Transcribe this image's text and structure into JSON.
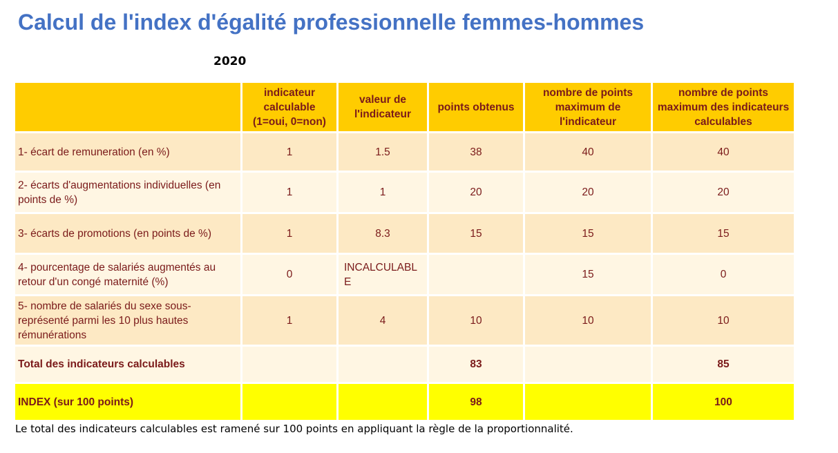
{
  "title": "Calcul de l'index d'égalité professionnelle femmes-hommes",
  "year": "2020",
  "table": {
    "headers": [
      "",
      "indicateur calculable (1=oui, 0=non)",
      "valeur de l'indicateur",
      "points obtenus",
      "nombre de points maximum de l'indicateur",
      "nombre de points maximum des indicateurs calculables"
    ],
    "rows": [
      {
        "label": "1- écart de remuneration (en %)",
        "calc": "1",
        "valeur": "1.5",
        "points": "38",
        "max": "40",
        "max_calc": "40"
      },
      {
        "label": "2- écarts d'augmentations individuelles (en points de %)",
        "calc": "1",
        "valeur": "1",
        "points": "20",
        "max": "20",
        "max_calc": "20"
      },
      {
        "label": "3- écarts de promotions (en points de %)",
        "calc": "1",
        "valeur": "8.3",
        "points": "15",
        "max": "15",
        "max_calc": "15"
      },
      {
        "label": "4- pourcentage de salariés augmentés au retour d'un congé maternité (%)",
        "calc": "0",
        "valeur": "INCALCULABLE",
        "points": "",
        "max": "15",
        "max_calc": "0"
      },
      {
        "label": "5- nombre de salariés du sexe sous-représenté parmi les 10 plus hautes rémunérations",
        "calc": "1",
        "valeur": "4",
        "points": "10",
        "max": "10",
        "max_calc": "10"
      }
    ],
    "total": {
      "label": "Total des indicateurs calculables",
      "points": "83",
      "max_calc": "85"
    },
    "index": {
      "label": "INDEX (sur 100 points)",
      "points": "98",
      "max_calc": "100"
    }
  },
  "note": "Le total des indicateurs calculables est ramené sur 100 points en appliquant la règle de la proportionnalité."
}
